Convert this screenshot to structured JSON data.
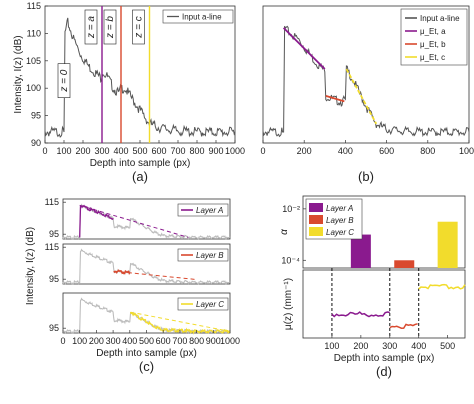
{
  "chart_data": [
    {
      "id": "a",
      "type": "line",
      "caption": "(a)",
      "xlabel": "Depth into sample (px)",
      "ylabel": "Intensity, I(z) (dB)",
      "xlim": [
        0,
        1000
      ],
      "ylim": [
        90,
        115
      ],
      "xticks": [
        "0",
        "100",
        "200",
        "300",
        "400",
        "500",
        "600",
        "700",
        "800",
        "900",
        "1000"
      ],
      "yticks": [
        "90",
        "95",
        "100",
        "105",
        "110",
        "115"
      ],
      "legend": {
        "entries": [
          "Input a-line"
        ],
        "placement": "top-right"
      },
      "series": [
        {
          "name": "Input a-line",
          "color": "#555555",
          "x": [
            0,
            40,
            80,
            100,
            105,
            120,
            150,
            190,
            230,
            260,
            290,
            300,
            305,
            330,
            360,
            390,
            400,
            420,
            460,
            500,
            550,
            600,
            700,
            800,
            900,
            1000
          ],
          "y": [
            92,
            92,
            92,
            92,
            110,
            112,
            109,
            106,
            104,
            103,
            102,
            102,
            103,
            102,
            100,
            99,
            100,
            100,
            98,
            96,
            93.5,
            92.8,
            92.2,
            92,
            92,
            92
          ]
        }
      ],
      "markers": [
        {
          "label": "z = 0",
          "x": 100,
          "color": "#222222",
          "line": false
        },
        {
          "label": "z = a",
          "x": 300,
          "color": "#8a1a8e",
          "line": true
        },
        {
          "label": "z = b",
          "x": 400,
          "color": "#d9492e",
          "line": true
        },
        {
          "label": "z = c",
          "x": 550,
          "color": "#f2dc2c",
          "line": true
        }
      ]
    },
    {
      "id": "b",
      "type": "line",
      "caption": "(b)",
      "xlim": [
        0,
        1000
      ],
      "ylim": [
        90,
        115
      ],
      "xticks": [
        "0",
        "200",
        "400",
        "600",
        "800",
        "1000"
      ],
      "legend": {
        "entries": [
          "Input a-line",
          "μ_Et, a",
          "μ_Et, b",
          "μ_Et, c"
        ],
        "placement": "top-right"
      },
      "series": [
        {
          "name": "Input a-line",
          "color": "#555555",
          "x": [
            0,
            60,
            95,
            100,
            105,
            130,
            170,
            210,
            250,
            290,
            300,
            305,
            340,
            380,
            400,
            405,
            430,
            470,
            510,
            550,
            600,
            700,
            800,
            900,
            1000
          ],
          "y": [
            92,
            92,
            92,
            92,
            111,
            110,
            109,
            107,
            105,
            103.5,
            103,
            98.5,
            98,
            97.5,
            98,
            103.5,
            102,
            99,
            96,
            93.5,
            92.5,
            92.1,
            92,
            92,
            92
          ]
        },
        {
          "name": "μ_Et, a",
          "color": "#8a1a8e",
          "x": [
            100,
            300
          ],
          "y": [
            111,
            103.5
          ]
        },
        {
          "name": "μ_Et, b",
          "color": "#d9492e",
          "x": [
            305,
            395
          ],
          "y": [
            98.6,
            97.6
          ]
        },
        {
          "name": "μ_Et, c",
          "color": "#f2dc2c",
          "x": [
            405,
            550
          ],
          "y": [
            103.5,
            93.5
          ]
        }
      ]
    },
    {
      "id": "c",
      "type": "line",
      "caption": "(c)",
      "xlabel": "Depth into sample (px)",
      "ylabel": "Intensity, I(z) (dB)",
      "xlim": [
        0,
        1000
      ],
      "xticks": [
        "0",
        "100",
        "200",
        "300",
        "400",
        "500",
        "600",
        "700",
        "800",
        "900",
        "1000"
      ],
      "panels": [
        {
          "legend": "Layer A",
          "yticks": [
            "95",
            "115"
          ],
          "ylim": [
            92,
            117
          ],
          "color": "#8a1a8e",
          "fit_range": [
            100,
            300
          ],
          "extrap_to": 750,
          "trace_x": [
            0,
            95,
            100,
            105,
            150,
            200,
            250,
            300,
            305,
            350,
            400,
            405,
            450,
            500,
            550,
            600,
            700,
            800,
            900,
            1000
          ],
          "trace_y": [
            93,
            93,
            93,
            113,
            111,
            109,
            107,
            105,
            100,
            99.5,
            99,
            105,
            102,
            99,
            96,
            94,
            93.5,
            93,
            93,
            93
          ],
          "fit_y": [
            113,
            105
          ]
        },
        {
          "legend": "Layer B",
          "yticks": [
            "95",
            "115"
          ],
          "ylim": [
            92,
            117
          ],
          "color": "#d9492e",
          "fit_range": [
            305,
            400
          ],
          "extrap_to": 800,
          "trace_x": [
            0,
            95,
            100,
            105,
            150,
            200,
            250,
            300,
            305,
            350,
            400,
            405,
            450,
            500,
            550,
            600,
            700,
            800,
            900,
            1000
          ],
          "trace_y": [
            93,
            93,
            93,
            113,
            111,
            109,
            107,
            105,
            100,
            99.5,
            99,
            105,
            102,
            99,
            96,
            94,
            93.5,
            93,
            93,
            93
          ],
          "fit_y": [
            100,
            99
          ]
        },
        {
          "legend": "Layer C",
          "yticks": [
            "95"
          ],
          "ylim": [
            92,
            117
          ],
          "color": "#f2dc2c",
          "fit_range": [
            405,
            1000
          ],
          "extrap_to": 1000,
          "trace_x": [
            0,
            95,
            100,
            105,
            150,
            200,
            250,
            300,
            305,
            350,
            400,
            405,
            450,
            500,
            550,
            600,
            700,
            800,
            900,
            1000
          ],
          "trace_y": [
            93,
            93,
            93,
            113,
            111,
            109,
            107,
            105,
            100,
            99.5,
            99,
            105,
            102,
            99,
            96,
            94,
            93.5,
            93,
            93,
            93
          ],
          "fit_y": [
            105,
            93
          ]
        }
      ]
    },
    {
      "id": "d",
      "type": "bar",
      "caption": "(d)",
      "xlabel": "Depth into sample (px)",
      "ylabel_top": "α",
      "ylabel_bottom": "μ(z) (mm⁻¹)",
      "xlim": [
        0,
        560
      ],
      "xticks": [
        "100",
        "200",
        "300",
        "400",
        "500"
      ],
      "yticks_top": [
        "10⁻⁴",
        "10⁻²"
      ],
      "ylim_top_log10": [
        -4.3,
        -1.5
      ],
      "legend": {
        "entries": [
          "Layer A",
          "Layer B",
          "Layer C"
        ],
        "placement": "top-left"
      },
      "alpha_bars": [
        {
          "name": "Layer A",
          "x": 200,
          "value_log10": -3.0,
          "color": "#8a1a8e"
        },
        {
          "name": "Layer B",
          "x": 350,
          "value_log10": -4.0,
          "color": "#d9492e"
        },
        {
          "name": "Layer C",
          "x": 500,
          "value_log10": -2.5,
          "color": "#f2dc2c"
        }
      ],
      "mu_segments": [
        {
          "name": "Layer A",
          "from": 100,
          "to": 300,
          "level": 0.35,
          "color": "#8a1a8e"
        },
        {
          "name": "Layer B",
          "from": 300,
          "to": 400,
          "level": 0.18,
          "color": "#d9492e"
        },
        {
          "name": "Layer C",
          "from": 400,
          "to": 560,
          "level": 0.75,
          "color": "#f2dc2c"
        }
      ],
      "boundaries": [
        100,
        300,
        400
      ]
    }
  ]
}
